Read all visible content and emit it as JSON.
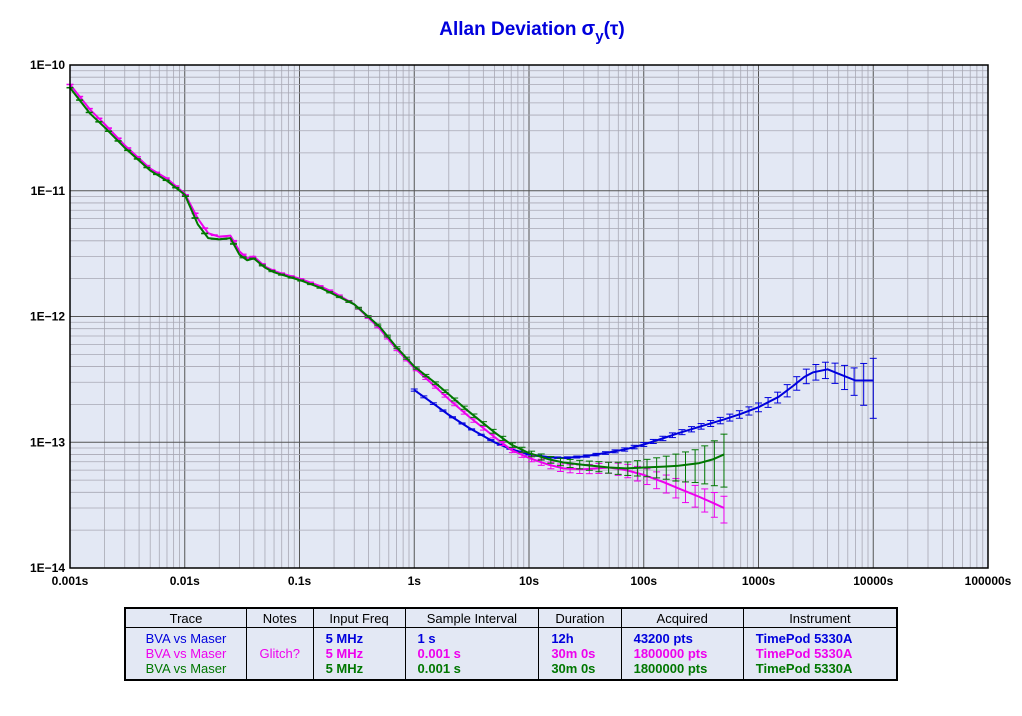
{
  "chart_data": {
    "type": "line",
    "title": "Allan Deviation",
    "x_scale": "log",
    "y_scale": "log",
    "xlim": [
      0.001,
      100000
    ],
    "ylim": [
      1e-14,
      1e-10
    ],
    "grid": true,
    "x_ticks": [
      {
        "value": 0.001,
        "label": "0.001s"
      },
      {
        "value": 0.01,
        "label": "0.01s"
      },
      {
        "value": 0.1,
        "label": "0.1s"
      },
      {
        "value": 1,
        "label": "1s"
      },
      {
        "value": 10,
        "label": "10s"
      },
      {
        "value": 100,
        "label": "100s"
      },
      {
        "value": 1000,
        "label": "1000s"
      },
      {
        "value": 10000,
        "label": "10000s"
      },
      {
        "value": 100000,
        "label": "100000s"
      }
    ],
    "y_ticks": [
      {
        "value": 1e-10,
        "label": "1E−10"
      },
      {
        "value": 1e-11,
        "label": "1E−11"
      },
      {
        "value": 1e-12,
        "label": "1E−12"
      },
      {
        "value": 1e-13,
        "label": "1E−13"
      },
      {
        "value": 1e-14,
        "label": "1E−14"
      }
    ],
    "series": [
      {
        "color": "#0000dd",
        "x": [
          1,
          1.5,
          2,
          3,
          5,
          7,
          10,
          15,
          20,
          30,
          50,
          70,
          100,
          150,
          200,
          300,
          500,
          700,
          1000,
          1500,
          2000,
          2500,
          3000,
          4000,
          5000,
          7000,
          10000
        ],
        "y": [
          2.6e-13,
          2e-13,
          1.65e-13,
          1.3e-13,
          1e-13,
          8.8e-14,
          8e-14,
          7.6e-14,
          7.5e-14,
          7.7e-14,
          8.3e-14,
          8.8e-14,
          9.6e-14,
          1.08e-13,
          1.18e-13,
          1.32e-13,
          1.52e-13,
          1.68e-13,
          1.9e-13,
          2.3e-13,
          2.8e-13,
          3.3e-13,
          3.6e-13,
          3.8e-13,
          3.5e-13,
          3.1e-13,
          3.1e-13
        ],
        "err": [
          0.02,
          0.015,
          0.01,
          0.01,
          0.01,
          0.01,
          0.01,
          0.012,
          0.015,
          0.02,
          0.025,
          0.03,
          0.035,
          0.04,
          0.045,
          0.05,
          0.06,
          0.07,
          0.08,
          0.1,
          0.12,
          0.13,
          0.14,
          0.15,
          0.2,
          0.25,
          0.5
        ]
      },
      {
        "color": "#ee00ee",
        "x": [
          0.001,
          0.0015,
          0.002,
          0.003,
          0.005,
          0.007,
          0.01,
          0.013,
          0.016,
          0.02,
          0.025,
          0.03,
          0.035,
          0.04,
          0.05,
          0.06,
          0.07,
          0.1,
          0.15,
          0.2,
          0.3,
          0.5,
          0.7,
          1,
          1.5,
          2,
          3,
          5,
          7,
          10,
          15,
          20,
          30,
          50,
          70,
          100,
          150,
          200,
          300,
          400,
          500
        ],
        "y": [
          7e-11,
          4.4e-11,
          3.4e-11,
          2.3e-11,
          1.5e-11,
          1.25e-11,
          9.5e-12,
          6e-12,
          4.6e-12,
          4.3e-12,
          4.4e-12,
          3.3e-12,
          2.9e-12,
          3e-12,
          2.5e-12,
          2.3e-12,
          2.2e-12,
          2e-12,
          1.75e-12,
          1.55e-12,
          1.25e-12,
          8e-13,
          5.5e-13,
          3.9e-13,
          2.8e-13,
          2.2e-13,
          1.6e-13,
          1.1e-13,
          8.7e-14,
          7.5e-14,
          6.6e-14,
          6.2e-14,
          6.1e-14,
          6.3e-14,
          6e-14,
          5.5e-14,
          4.8e-14,
          4.3e-14,
          3.7e-14,
          3.3e-14,
          3e-14
        ],
        "err": [
          0.005,
          0.005,
          0.005,
          0.005,
          0.005,
          0.005,
          0.005,
          0.006,
          0.007,
          0.008,
          0.009,
          0.01,
          0.01,
          0.01,
          0.01,
          0.01,
          0.01,
          0.01,
          0.01,
          0.012,
          0.014,
          0.016,
          0.018,
          0.02,
          0.022,
          0.025,
          0.03,
          0.035,
          0.04,
          0.05,
          0.06,
          0.07,
          0.08,
          0.1,
          0.12,
          0.14,
          0.16,
          0.18,
          0.2,
          0.22,
          0.24
        ]
      },
      {
        "color": "#007700",
        "x": [
          0.001,
          0.0015,
          0.002,
          0.003,
          0.005,
          0.007,
          0.01,
          0.013,
          0.016,
          0.02,
          0.025,
          0.03,
          0.035,
          0.04,
          0.05,
          0.06,
          0.07,
          0.1,
          0.15,
          0.2,
          0.3,
          0.5,
          0.7,
          1,
          1.5,
          2,
          3,
          5,
          7,
          10,
          15,
          20,
          30,
          50,
          70,
          100,
          150,
          200,
          300,
          400,
          500
        ],
        "y": [
          6.6e-11,
          4.1e-11,
          3.2e-11,
          2.2e-11,
          1.45e-11,
          1.2e-11,
          9.3e-12,
          5.4e-12,
          4.2e-12,
          4.1e-12,
          4.2e-12,
          3.1e-12,
          2.8e-12,
          2.9e-12,
          2.45e-12,
          2.25e-12,
          2.15e-12,
          1.95e-12,
          1.7e-12,
          1.5e-12,
          1.25e-12,
          8.3e-13,
          5.7e-13,
          4e-13,
          3e-13,
          2.4e-13,
          1.75e-13,
          1.2e-13,
          9.6e-14,
          8.2e-14,
          7.3e-14,
          6.9e-14,
          6.6e-14,
          6.3e-14,
          6.2e-14,
          6.3e-14,
          6.4e-14,
          6.5e-14,
          6.8e-14,
          7.3e-14,
          8e-14
        ],
        "err": [
          0.005,
          0.005,
          0.005,
          0.005,
          0.005,
          0.005,
          0.005,
          0.006,
          0.007,
          0.008,
          0.009,
          0.01,
          0.01,
          0.01,
          0.01,
          0.01,
          0.01,
          0.01,
          0.01,
          0.012,
          0.014,
          0.016,
          0.018,
          0.02,
          0.022,
          0.025,
          0.03,
          0.035,
          0.04,
          0.05,
          0.06,
          0.07,
          0.08,
          0.1,
          0.12,
          0.15,
          0.2,
          0.25,
          0.3,
          0.38,
          0.45
        ]
      }
    ]
  },
  "legend_table": {
    "headers": [
      "Trace",
      "Notes",
      "Input Freq",
      "Sample Interval",
      "Duration",
      "Acquired",
      "Instrument"
    ],
    "rows": [
      {
        "color": "#0000dd",
        "cells": [
          "BVA vs Maser",
          "",
          "5 MHz",
          "1 s",
          "12h",
          "43200 pts",
          "TimePod 5330A"
        ]
      },
      {
        "color": "#ee00ee",
        "cells": [
          "BVA vs Maser",
          "Glitch?",
          "5 MHz",
          "0.001 s",
          "30m 0s",
          "1800000 pts",
          "TimePod 5330A"
        ]
      },
      {
        "color": "#007700",
        "cells": [
          "BVA vs Maser",
          "",
          "5 MHz",
          "0.001 s",
          "30m 0s",
          "1800000 pts",
          "TimePod 5330A"
        ]
      }
    ]
  }
}
